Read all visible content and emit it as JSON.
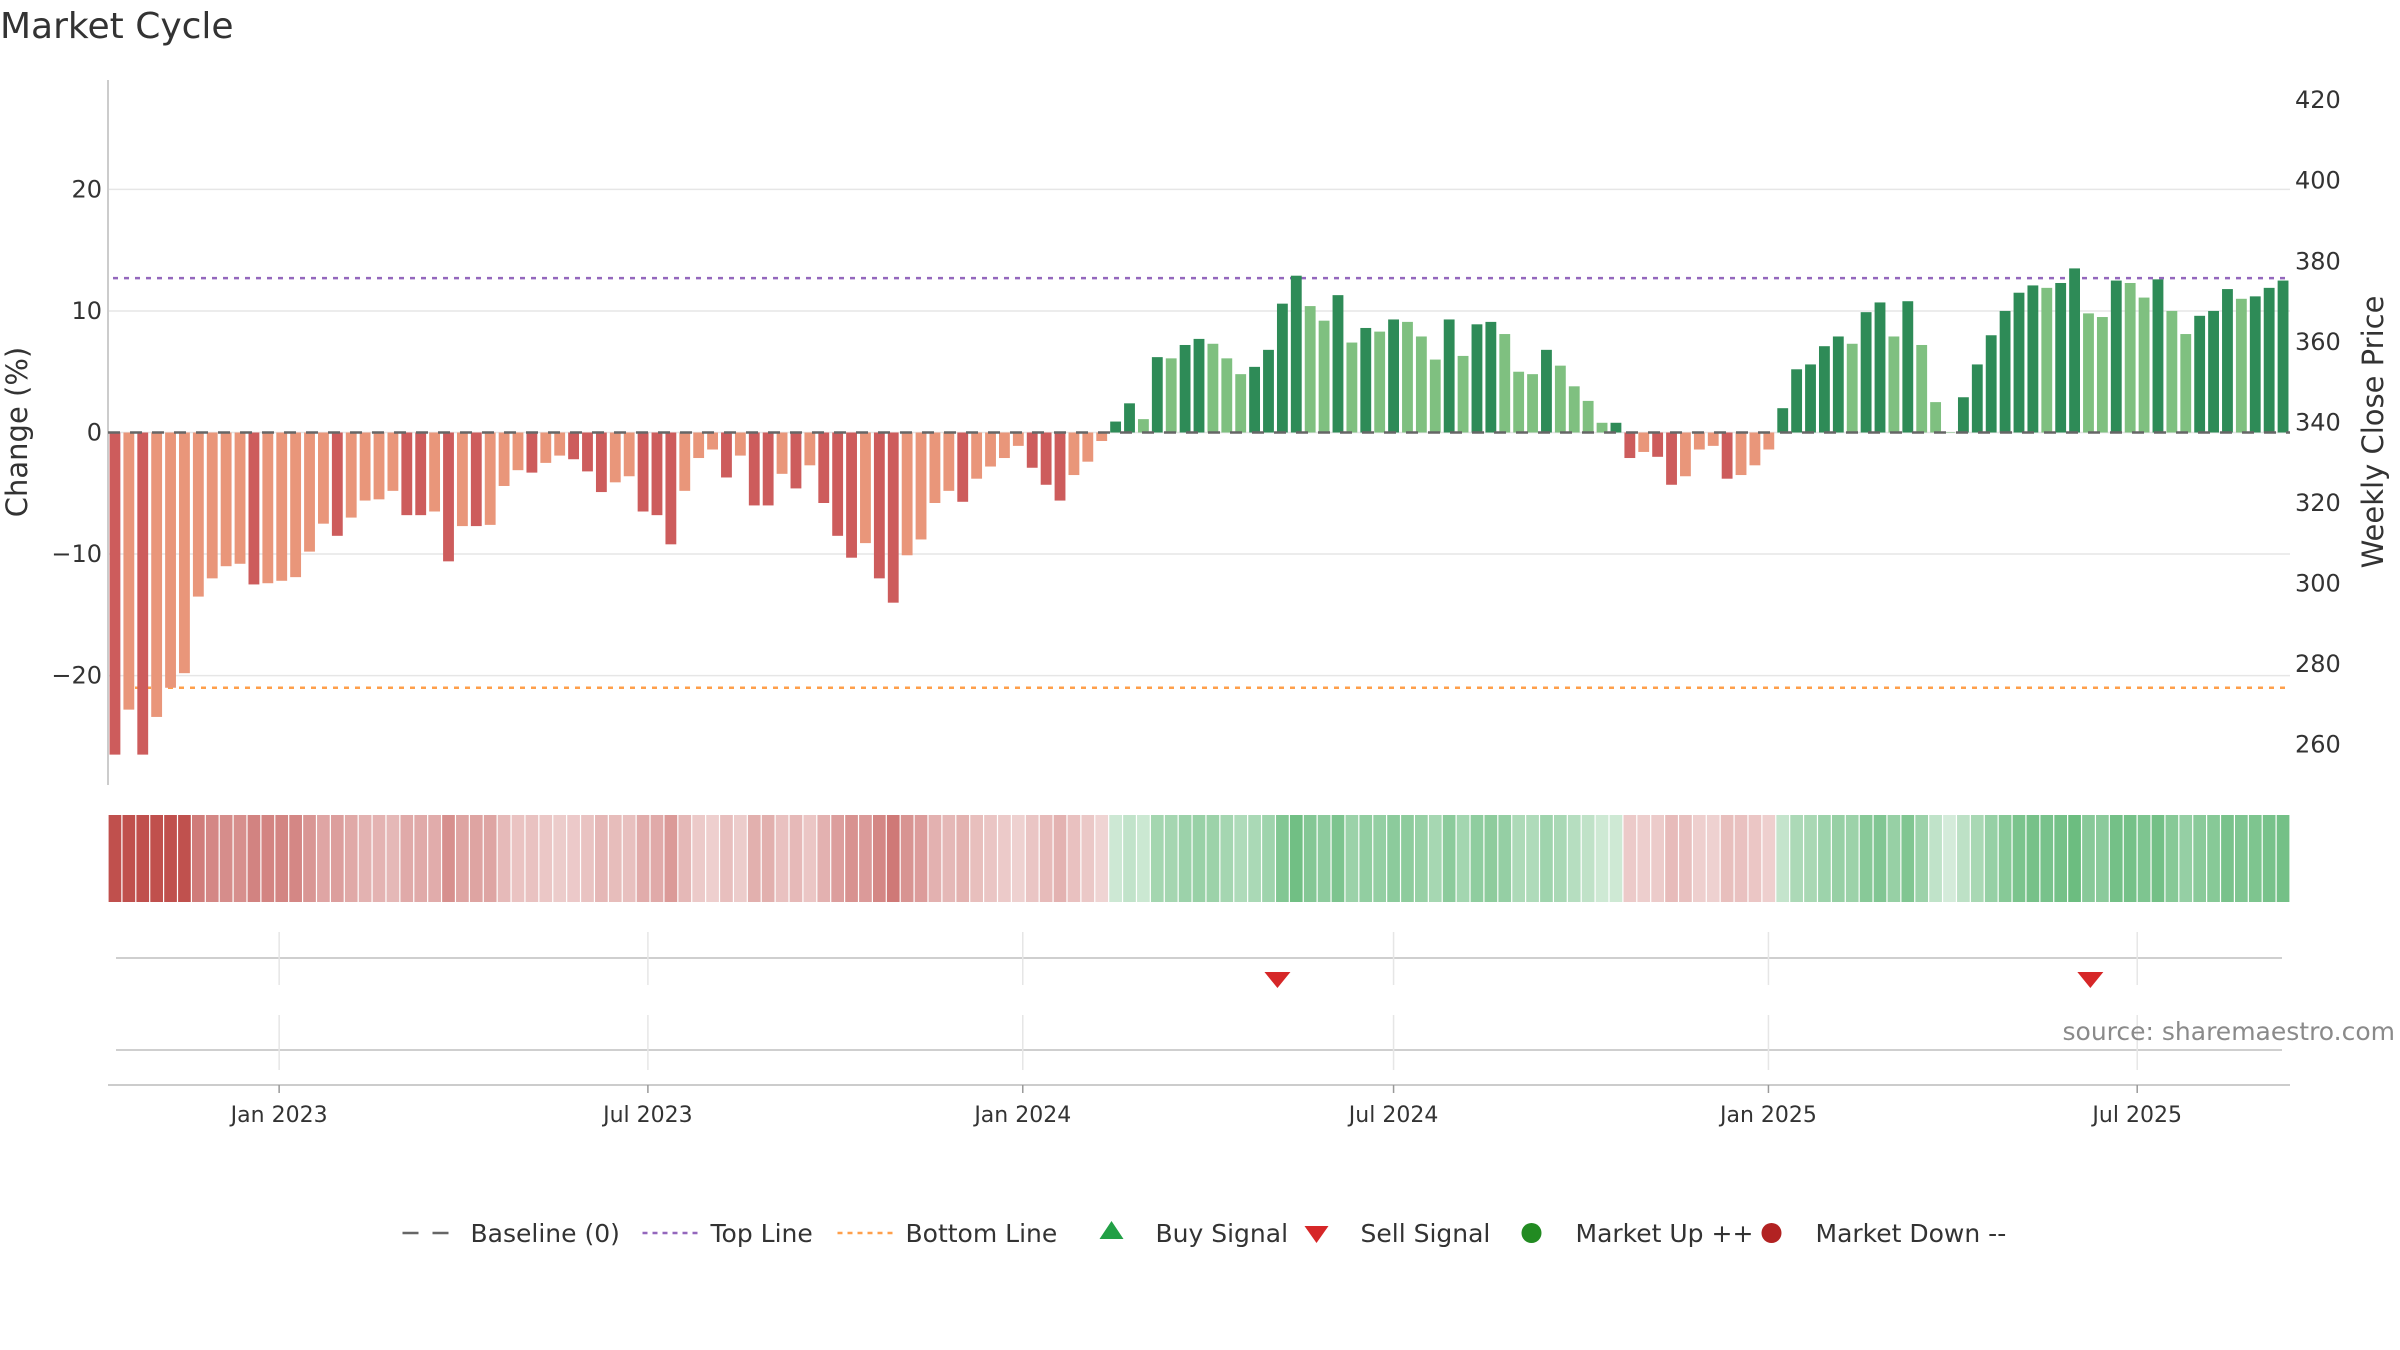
{
  "chart_data": {
    "type": "bar",
    "title": "Market Cycle",
    "ylabel": "Change (%)",
    "y2label": "Weekly Close Price",
    "ylim": [
      -29,
      29
    ],
    "y2lim": [
      250,
      425
    ],
    "yticks": [
      20,
      10,
      0,
      -10,
      -20
    ],
    "ytick_labels": [
      "20",
      "10",
      "0",
      "−10",
      "−20"
    ],
    "y2ticks": [
      420,
      400,
      380,
      360,
      340,
      320,
      300,
      280,
      260
    ],
    "x_start": "2022-10-09",
    "x_end": "2025-09-14",
    "xticks": [
      {
        "date": "2023-01-01",
        "label": "Jan 2023"
      },
      {
        "date": "2023-07-01",
        "label": "Jul 2023"
      },
      {
        "date": "2024-01-01",
        "label": "Jan 2024"
      },
      {
        "date": "2024-07-01",
        "label": "Jul 2024"
      },
      {
        "date": "2025-01-01",
        "label": "Jan 2025"
      },
      {
        "date": "2025-07-01",
        "label": "Jul 2025"
      }
    ],
    "top_line": 12.7,
    "bottom_line": -21,
    "baseline": 0,
    "grid": true,
    "legend_position": "bottom-center",
    "values": [
      -26.5,
      -22.8,
      -26.5,
      -23.4,
      -21,
      -19.8,
      -13.5,
      -12,
      -11,
      -10.8,
      -12.5,
      -12.4,
      -12.2,
      -11.9,
      -9.8,
      -7.5,
      -8.5,
      -7,
      -5.6,
      -5.5,
      -4.8,
      -6.8,
      -6.8,
      -6.5,
      -10.6,
      -7.7,
      -7.7,
      -7.6,
      -4.4,
      -3.1,
      -3.3,
      -2.5,
      -1.9,
      -2.2,
      -3.2,
      -4.9,
      -4.1,
      -3.6,
      -6.5,
      -6.8,
      -9.2,
      -4.8,
      -2.1,
      -1.4,
      -3.7,
      -1.9,
      -6,
      -6,
      -3.4,
      -4.6,
      -2.7,
      -5.8,
      -8.5,
      -10.3,
      -9.1,
      -12,
      -14,
      -10.1,
      -8.8,
      -5.8,
      -4.8,
      -5.7,
      -3.8,
      -2.8,
      -2.1,
      -1.1,
      -2.9,
      -4.3,
      -5.6,
      -3.5,
      -2.4,
      -0.7,
      0.9,
      2.4,
      1.1,
      6.2,
      6.1,
      7.2,
      7.7,
      7.3,
      6.1,
      4.8,
      5.4,
      6.8,
      10.6,
      12.9,
      10.4,
      9.2,
      11.3,
      7.4,
      8.6,
      8.3,
      9.3,
      9.1,
      7.9,
      6,
      9.3,
      6.3,
      8.9,
      9.1,
      8.1,
      5,
      4.8,
      6.8,
      5.5,
      3.8,
      2.6,
      0.8,
      0.8,
      -2.1,
      -1.6,
      -2,
      -4.3,
      -3.6,
      -1.4,
      -1.1,
      -3.8,
      -3.5,
      -2.7,
      -1.4,
      2,
      5.2,
      5.6,
      7.1,
      7.9,
      7.3,
      9.9,
      10.7,
      7.9,
      10.8,
      7.2,
      2.5,
      0,
      2.9,
      5.6,
      8,
      10,
      11.5,
      12.1,
      11.9,
      12.3,
      13.5,
      9.8,
      9.5,
      12.5,
      12.3,
      11.1,
      12.6,
      10,
      8.1,
      9.6,
      10,
      11.8,
      11,
      11.2,
      11.9,
      12.5
    ],
    "sell_signals": [
      "2024-05-05",
      "2025-06-08"
    ],
    "buy_signals": [],
    "source": "source: sharemaestro.com",
    "legend": [
      {
        "label": "Baseline (0)",
        "symbol": "dash",
        "color": "#666666"
      },
      {
        "label": "Top Line",
        "symbol": "dotted",
        "color": "#9467bd"
      },
      {
        "label": "Bottom Line",
        "symbol": "dotted",
        "color": "#ff9f4a"
      },
      {
        "label": "Buy Signal",
        "symbol": "triangle-up",
        "color": "#22a046"
      },
      {
        "label": "Sell Signal",
        "symbol": "triangle-down",
        "color": "#d62728"
      },
      {
        "label": "Market Up ++",
        "symbol": "circle",
        "color": "#228b22"
      },
      {
        "label": "Market Down --",
        "symbol": "circle",
        "color": "#b22222"
      }
    ]
  },
  "colors": {
    "up_strong": "#2e8b57",
    "up_light": "#7fc080",
    "down_strong": "#cd5c5c",
    "down_light": "#e9967a",
    "heat_green": "#3aa655",
    "heat_red": "#c0504d",
    "top_line": "#9467bd",
    "bottom_line": "#ff9f4a",
    "baseline": "#666666",
    "grid": "#e6e6e6",
    "axis": "#cccccc"
  }
}
